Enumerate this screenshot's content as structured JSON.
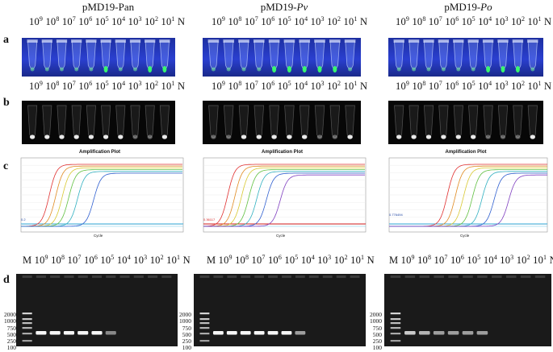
{
  "columns": [
    {
      "title_main": "pMD19-",
      "title_em": "",
      "title_plain": "Pan"
    },
    {
      "title_main": "pMD19-",
      "title_em": "Pv",
      "title_plain": ""
    },
    {
      "title_main": "pMD19-",
      "title_em": "Po",
      "title_plain": ""
    }
  ],
  "row_labels": {
    "a": "a",
    "b": "b",
    "c": "c",
    "d": "d"
  },
  "scale": {
    "ten": "10",
    "n": "N",
    "m": "M"
  },
  "exponents": [
    "9",
    "8",
    "7",
    "6",
    "5",
    "4",
    "3",
    "2",
    "1"
  ],
  "amp_title": "Amplification Plot",
  "amp_xlabel": "Cycle",
  "amp_ylabel": "ΔRn",
  "thresholds": [
    "0.2",
    "0.36117",
    "0.776494"
  ],
  "ladder": [
    "2000",
    "1000",
    "750",
    "500",
    "250",
    "100"
  ],
  "colors": {
    "uv": "#2a3fd0",
    "green": "#39ff6a",
    "threshold_red": "#d42020"
  }
}
